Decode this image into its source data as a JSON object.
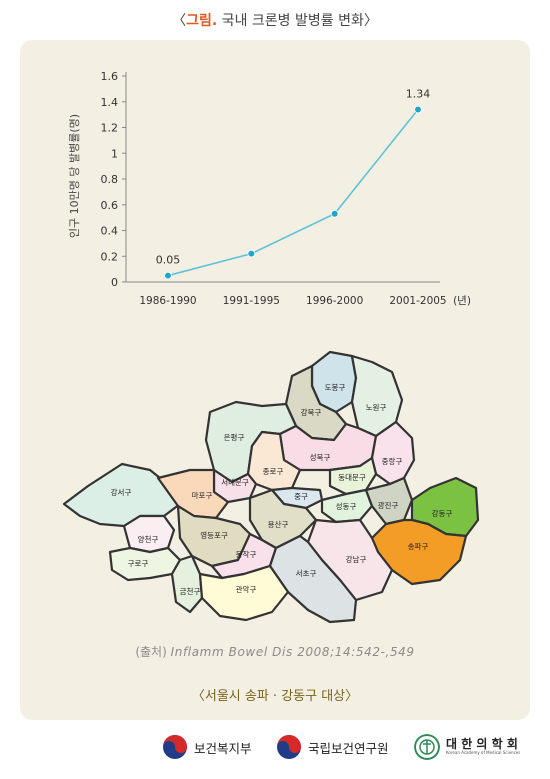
{
  "header": {
    "bracket_open": "〈",
    "label": "그림.",
    "text": " 국내 크론병 발병률 변화",
    "bracket_close": "〉"
  },
  "chart_data": {
    "type": "line",
    "categories": [
      "1986-1990",
      "1991-1995",
      "1996-2000",
      "2001-2005"
    ],
    "values": [
      0.05,
      0.22,
      0.53,
      1.34
    ],
    "data_labels": [
      "0.05",
      "",
      "",
      "1.34"
    ],
    "ylabel": "인구 10만명 당 발병률(명)",
    "xlabel_unit": "(년)",
    "ylim": [
      0,
      1.6
    ],
    "yticks": [
      "0",
      "0.2",
      "0.4",
      "0.6",
      "0.8",
      "1",
      "1.2",
      "1.4",
      "1.6"
    ],
    "line_color": "#5bc3d8",
    "marker_color": "#1ea6c9"
  },
  "map": {
    "districts": {
      "dobong": "도봉구",
      "nowon": "노원구",
      "gangbuk": "강북구",
      "eunpyeong": "은평구",
      "seongbuk": "성북구",
      "jungnang": "중랑구",
      "jongno": "종로구",
      "seodaemun": "서대문구",
      "dongdaemun": "동대문구",
      "gangseo": "강서구",
      "mapo": "마포구",
      "jung": "중구",
      "seongdong": "성동구",
      "gwangjin": "광진구",
      "gangdong": "강동구",
      "yongsan": "용산구",
      "yangcheon": "양천구",
      "yeongdeungpo": "영등포구",
      "songpa": "송파구",
      "dongjak": "동작구",
      "gangnam": "강남구",
      "guro": "구로구",
      "seocho": "서초구",
      "geumcheon": "금천구",
      "gwanak": "관악구"
    },
    "highlight_colors": {
      "songpa": "#f39c26",
      "gangdong": "#7cc242"
    }
  },
  "source": {
    "prefix": "(출처) ",
    "citation": "Inflamm Bowel Dis 2008;14:542-,549"
  },
  "caption": "〈서울시 송파 · 강동구 대상〉",
  "footer": {
    "org1": "보건복지부",
    "org2": "국립보건연구원",
    "org3": "대 한 의 학 회",
    "org3_sub": "Korean Academy of Medical Sciences"
  }
}
